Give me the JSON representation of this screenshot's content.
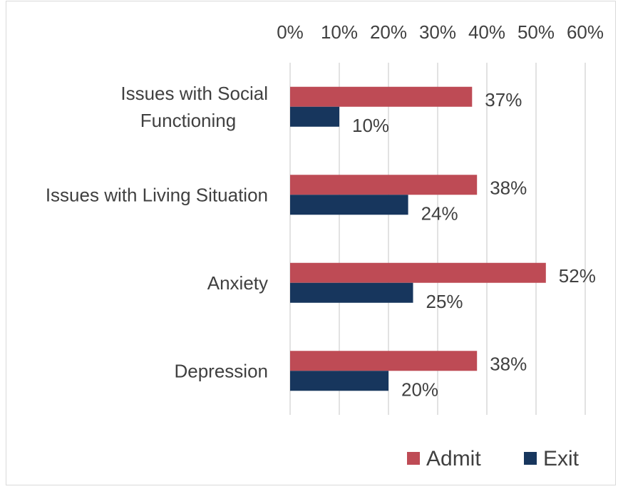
{
  "chart_data": {
    "type": "bar",
    "orientation": "horizontal",
    "categories": [
      [
        "Issues with Social",
        "Functioning"
      ],
      [
        "Issues with Living Situation"
      ],
      [
        "Anxiety"
      ],
      [
        "Depression"
      ]
    ],
    "series": [
      {
        "name": "Admit",
        "values": [
          37,
          38,
          52,
          38
        ],
        "labels": [
          "37%",
          "38%",
          "52%",
          "38%"
        ],
        "color": "#be4b55"
      },
      {
        "name": "Exit",
        "values": [
          10,
          24,
          25,
          20
        ],
        "labels": [
          "10%",
          "24%",
          "25%",
          "20%"
        ],
        "color": "#17365d"
      }
    ],
    "x_ticks": [
      "0%",
      "10%",
      "20%",
      "30%",
      "40%",
      "50%",
      "60%"
    ],
    "xlim": [
      0,
      60
    ],
    "axis_position": "top",
    "grid": true,
    "legend_position": "bottom-right"
  }
}
